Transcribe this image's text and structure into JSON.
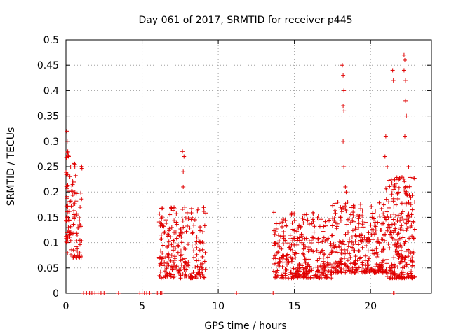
{
  "chart_data": {
    "type": "scatter",
    "title": "Day 061 of 2017, SRMTID for receiver p445",
    "xlabel": "GPS time / hours",
    "ylabel": "SRMTID / TECUs",
    "xlim": [
      0,
      24
    ],
    "ylim": [
      0,
      0.5
    ],
    "xticks": [
      0,
      5,
      10,
      15,
      20
    ],
    "xtick_labels": [
      "0",
      "5",
      "10",
      "15",
      "20"
    ],
    "yticks": [
      0,
      0.05,
      0.1,
      0.15,
      0.2,
      0.25,
      0.3,
      0.35,
      0.4,
      0.45,
      0.5
    ],
    "ytick_labels": [
      "0",
      "0.05",
      "0.1",
      "0.15",
      "0.2",
      "0.25",
      "0.3",
      "0.35",
      "0.4",
      "0.45",
      "0.5"
    ],
    "grid": true,
    "marker": "+",
    "marker_color": "#e00000",
    "clusters": [
      {
        "x0": 0.0,
        "x1": 0.25,
        "yBase": 0.1,
        "ySpread": 0.18,
        "n": 40
      },
      {
        "x0": 0.25,
        "x1": 1.05,
        "yBase": 0.07,
        "ySpread": 0.19,
        "n": 70
      },
      {
        "x0": 6.1,
        "x1": 9.2,
        "yBase": 0.03,
        "ySpread": 0.14,
        "n": 240
      },
      {
        "x0": 13.6,
        "x1": 17.5,
        "yBase": 0.03,
        "ySpread": 0.13,
        "n": 320
      },
      {
        "x0": 17.5,
        "x1": 21.0,
        "yBase": 0.04,
        "ySpread": 0.14,
        "n": 330
      },
      {
        "x0": 21.0,
        "x1": 22.9,
        "yBase": 0.03,
        "ySpread": 0.2,
        "n": 260
      }
    ],
    "points": [
      [
        0.05,
        0.32
      ],
      [
        0.08,
        0.3
      ],
      [
        0.12,
        0.28
      ],
      [
        0.18,
        0.27
      ],
      [
        0.1,
        0.08
      ],
      [
        0.06,
        0.1
      ],
      [
        7.65,
        0.28
      ],
      [
        7.75,
        0.27
      ],
      [
        7.7,
        0.21
      ],
      [
        7.7,
        0.24
      ],
      [
        7.8,
        0.17
      ],
      [
        18.15,
        0.45
      ],
      [
        18.2,
        0.43
      ],
      [
        18.25,
        0.4
      ],
      [
        18.2,
        0.37
      ],
      [
        18.25,
        0.36
      ],
      [
        18.2,
        0.3
      ],
      [
        18.25,
        0.25
      ],
      [
        18.35,
        0.21
      ],
      [
        18.5,
        0.18
      ],
      [
        18.4,
        0.2
      ],
      [
        21.45,
        0.44
      ],
      [
        21.5,
        0.42
      ],
      [
        21.0,
        0.31
      ],
      [
        20.95,
        0.27
      ],
      [
        21.1,
        0.25
      ],
      [
        22.2,
        0.47
      ],
      [
        22.25,
        0.46
      ],
      [
        22.2,
        0.44
      ],
      [
        22.3,
        0.42
      ],
      [
        22.3,
        0.38
      ],
      [
        22.35,
        0.35
      ],
      [
        22.25,
        0.31
      ],
      [
        22.5,
        0.25
      ],
      [
        22.45,
        0.21
      ],
      [
        22.6,
        0.18
      ],
      [
        1.15,
        0
      ],
      [
        1.35,
        0
      ],
      [
        1.55,
        0
      ],
      [
        1.7,
        0
      ],
      [
        1.9,
        0
      ],
      [
        2.1,
        0
      ],
      [
        2.3,
        0
      ],
      [
        2.5,
        0
      ],
      [
        3.45,
        0
      ],
      [
        4.85,
        0
      ],
      [
        5.0,
        0
      ],
      [
        5.15,
        0
      ],
      [
        5.3,
        0
      ],
      [
        5.5,
        0
      ],
      [
        6.0,
        0
      ],
      [
        6.1,
        0
      ],
      [
        6.2,
        0
      ],
      [
        6.3,
        0
      ],
      [
        11.2,
        0
      ],
      [
        13.6,
        0
      ],
      [
        21.5,
        0
      ],
      [
        21.55,
        0
      ]
    ]
  }
}
